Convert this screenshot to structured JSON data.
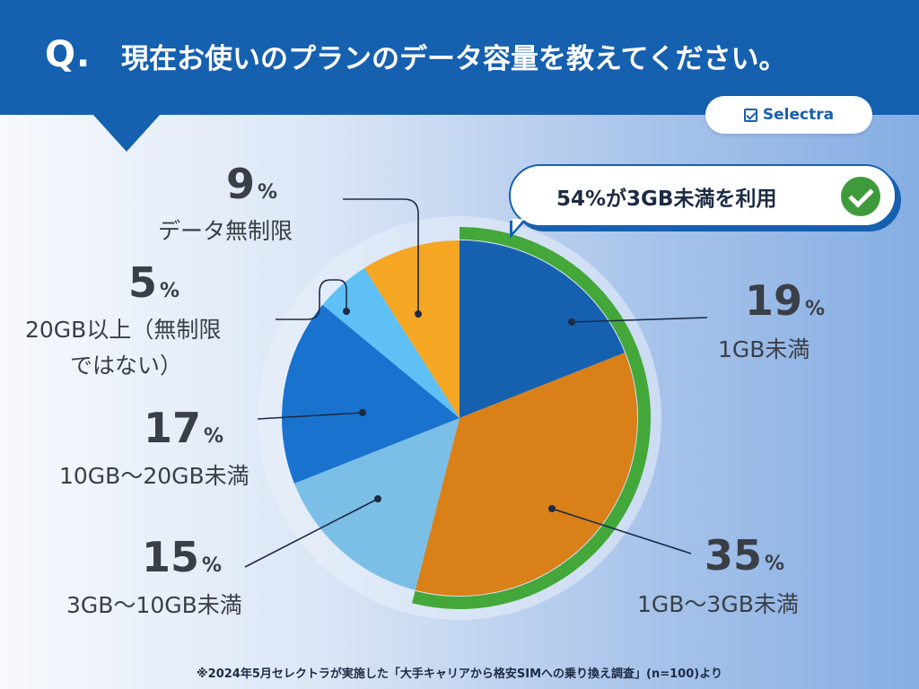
{
  "header": {
    "q_mark": "Q.",
    "title": "現在お使いのプランのデータ容量を教えてください。"
  },
  "logo": {
    "text": "Selectra"
  },
  "callout": {
    "text": "54%が3GB未満を利用",
    "icon": "check-circle-icon"
  },
  "footnote": "※2024年5月セレクトラが実施した「大手キャリアから格安SIMへの乗り換え調査」(n=100)より",
  "colors": {
    "header": "#1660b0",
    "ring": "#44a73a",
    "slices": [
      "#1660b0",
      "#d98018",
      "#7bbee6",
      "#1a72cf",
      "#5ec0f5",
      "#f5a623"
    ]
  },
  "chart_data": {
    "type": "pie",
    "start_angle_deg": 0,
    "direction": "clockwise",
    "slices": [
      {
        "pct_label": "19",
        "value": 19,
        "category": "1GB未満"
      },
      {
        "pct_label": "35",
        "value": 35,
        "category": "1GB〜3GB未満"
      },
      {
        "pct_label": "15",
        "value": 15,
        "category": "3GB〜10GB未満"
      },
      {
        "pct_label": "17",
        "value": 17,
        "category": "10GB〜20GB未満"
      },
      {
        "pct_label": "5",
        "value": 5,
        "category_line1": "20GB以上（無制限",
        "category_line2": "ではない）"
      },
      {
        "pct_label": "9",
        "value": 9,
        "category": "データ無制限"
      }
    ],
    "highlight": {
      "covers_slices": [
        0,
        1
      ],
      "total_pct": 54
    }
  }
}
